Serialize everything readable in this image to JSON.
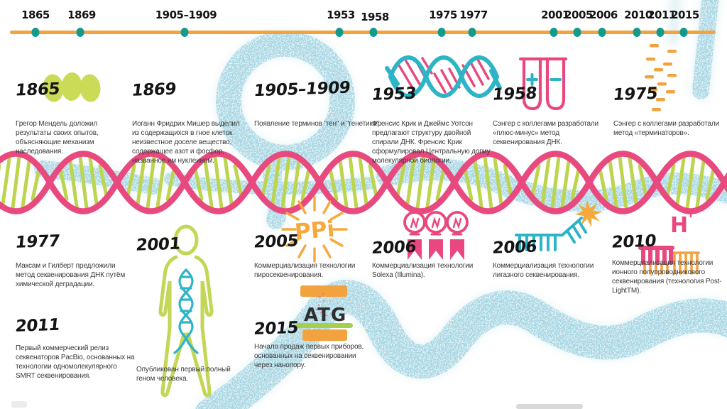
{
  "timeline": {
    "ticks": [
      "1865",
      "1869",
      "1905–1909",
      "1953",
      "1958",
      "1975",
      "1977",
      "2001",
      "2005",
      "2006",
      "2010",
      "2011",
      "2015"
    ]
  },
  "events": [
    {
      "year": "1865",
      "icon": "peas-icon",
      "text": "Грегор Мендель доложил результаты своих опытов, объясняющие механизм наследования."
    },
    {
      "year": "1869",
      "icon": "none",
      "text": "Иоганн Фридрих Мишер выделил из содержащихся в гное клеток неизвестное доселе вещество, содержащее азот и фосфор, названное им нуклеином."
    },
    {
      "year": "1905–1909",
      "icon": "none",
      "text": "Появление терминов \"ген\" и \"генетика\"."
    },
    {
      "year": "1953",
      "icon": "dna-double-helix-icon",
      "text": "Френсис Крик и Джеймс Уотсон предлагают структуру двойной спирали ДНК. Френсис Крик сформулировал Центральную догму молекулярной биологии."
    },
    {
      "year": "1958",
      "icon": "test-tubes-icon",
      "text": "Сэнгер с коллегами разработали «плюс-минус» метод секвенирования ДНК."
    },
    {
      "year": "1975",
      "icon": "gel-bands-icon",
      "text": "Сэнгер с коллегами разработали метод «терминаторов»."
    },
    {
      "year": "1977",
      "icon": "none",
      "text": "Максам и Гилберт предложили метод секвенирования ДНК путём химической деградации."
    },
    {
      "year": "2011",
      "icon": "none",
      "text": "Первый коммерческий релиз секвенаторов PacBio, основанных на технологии одномолекулярного SMRT секвенирования."
    },
    {
      "year": "2001",
      "icon": "human-genome-icon",
      "text": "Опубликован первый полный геном человека."
    },
    {
      "year": "2005",
      "icon": "ppi-sunburst-icon",
      "text": "Коммерциализация технологии пиросеквенирования."
    },
    {
      "year": "2015",
      "icon": "atg-nanopore-icon",
      "text": "Начало продаж первых приборов, основанных на секвенировании через нанопору."
    },
    {
      "year": "2006",
      "icon": "light-bulbs-icon",
      "text": "Коммерциализация технологии Solexa (Illumina)."
    },
    {
      "year": "2006",
      "icon": "ligase-comb-icon",
      "text": "Коммерциализация технологии лигазного секвенирования."
    },
    {
      "year": "2010",
      "icon": "ion-comb-icon",
      "text": "Коммерциализация технологии ионного полупроводникового секвенирования (технология Post-LightTM)."
    }
  ],
  "icon_labels": {
    "ppi": "PPi",
    "atg": "ATG",
    "h": "H",
    "h_sup": "+",
    "plus": "+",
    "minus": "–"
  },
  "colors": {
    "orange": "#f2a340",
    "pink": "#e8487f",
    "teal": "#2db4c6",
    "lime": "#c3d655",
    "dot_teal": "#149a8c",
    "spray_blue": "#9ed2e0",
    "text": "#3a3a3a"
  }
}
